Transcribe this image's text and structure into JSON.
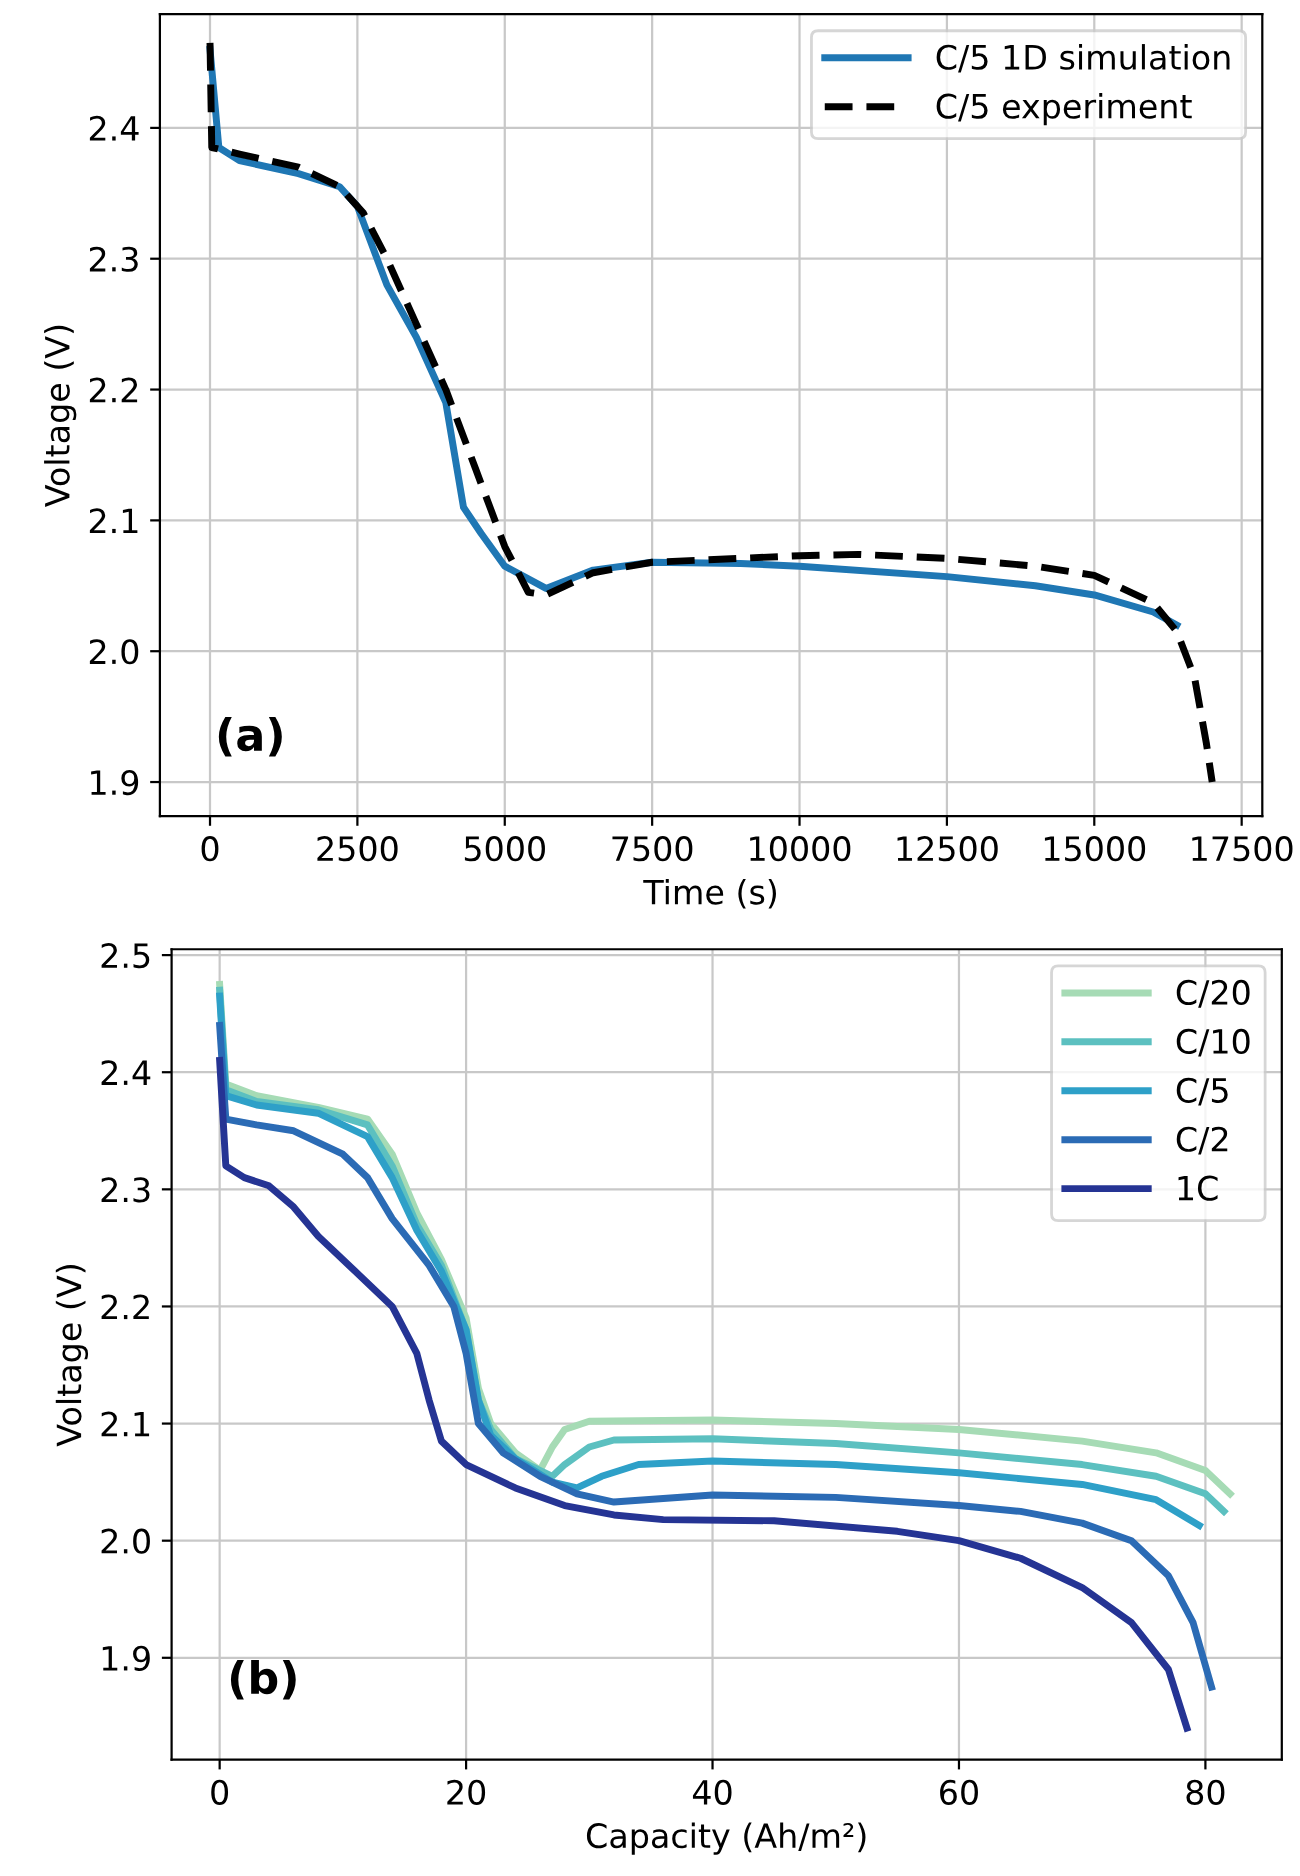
{
  "chart_data": [
    {
      "type": "line",
      "xlabel": "Time (s)",
      "ylabel": "Voltage (V)",
      "annotations": [
        "(a)"
      ],
      "xlim": [
        -850,
        17850
      ],
      "ylim": [
        1.874,
        2.487
      ],
      "xticks": [
        0,
        2500,
        5000,
        7500,
        10000,
        12500,
        15000,
        17500
      ],
      "yticks": [
        1.9,
        {
          "value": 2,
          "label": "2.0"
        },
        2.1,
        2.2,
        2.3,
        2.4
      ],
      "grid": true,
      "legend": "top right",
      "series": [
        {
          "name": "C/5 1D simulation",
          "color": "#1f77b4",
          "line_style": "solid",
          "x": [
            0,
            150,
            500,
            1500,
            2200,
            2500,
            3000,
            3500,
            4000,
            4300,
            4600,
            5000,
            5700,
            6500,
            7500,
            9000,
            10000,
            12500,
            14000,
            15000,
            16000,
            16400
          ],
          "values": [
            2.46,
            2.385,
            2.375,
            2.365,
            2.355,
            2.34,
            2.28,
            2.24,
            2.19,
            2.11,
            2.09,
            2.065,
            2.048,
            2.062,
            2.068,
            2.067,
            2.065,
            2.057,
            2.05,
            2.043,
            2.03,
            2.02
          ]
        },
        {
          "name": "C/5 experiment",
          "color": "#000000",
          "line_style": "dashed",
          "x": [
            0,
            30,
            500,
            1500,
            2200,
            2600,
            3000,
            3500,
            4000,
            4500,
            5000,
            5400,
            5700,
            6500,
            7500,
            10000,
            11000,
            12500,
            14000,
            15000,
            16000,
            16400,
            16700,
            16900,
            17000
          ],
          "values": [
            2.465,
            2.385,
            2.38,
            2.37,
            2.355,
            2.335,
            2.3,
            2.25,
            2.2,
            2.14,
            2.08,
            2.045,
            2.043,
            2.06,
            2.068,
            2.073,
            2.074,
            2.071,
            2.065,
            2.058,
            2.037,
            2.015,
            1.98,
            1.93,
            1.9
          ]
        }
      ]
    },
    {
      "type": "line",
      "xlabel": "Capacity (Ah/m²)",
      "ylabel": "Voltage (V)",
      "annotations": [
        "(b)"
      ],
      "xlim": [
        -3.9,
        86.2
      ],
      "ylim": [
        1.813,
        2.505
      ],
      "xticks": [
        0,
        20,
        40,
        60,
        80
      ],
      "yticks": [
        1.9,
        {
          "value": 2,
          "label": "2.0"
        },
        2.1,
        2.2,
        2.3,
        2.4,
        2.5
      ],
      "grid": true,
      "legend": "top right",
      "series": [
        {
          "name": "C/20",
          "color": "#a6dbb5",
          "x": [
            0,
            0.5,
            3,
            8,
            12,
            14,
            16,
            18,
            20,
            21,
            22,
            24,
            26,
            27,
            28,
            30,
            40,
            50,
            60,
            70,
            76,
            80,
            82
          ],
          "values": [
            2.475,
            2.39,
            2.38,
            2.37,
            2.36,
            2.33,
            2.28,
            2.24,
            2.19,
            2.13,
            2.1,
            2.075,
            2.06,
            2.08,
            2.095,
            2.102,
            2.103,
            2.1,
            2.095,
            2.085,
            2.075,
            2.06,
            2.04
          ]
        },
        {
          "name": "C/10",
          "color": "#5cc0c0",
          "x": [
            0,
            0.5,
            3,
            8,
            12,
            14,
            16,
            18,
            20,
            21,
            22,
            24,
            27,
            28,
            30,
            32,
            40,
            50,
            60,
            70,
            76,
            80,
            81.5
          ],
          "values": [
            2.47,
            2.385,
            2.375,
            2.368,
            2.355,
            2.32,
            2.27,
            2.235,
            2.18,
            2.12,
            2.095,
            2.07,
            2.055,
            2.065,
            2.08,
            2.086,
            2.087,
            2.083,
            2.075,
            2.065,
            2.055,
            2.04,
            2.025
          ]
        },
        {
          "name": "C/5",
          "color": "#2ea0c8",
          "x": [
            0,
            0.5,
            3,
            8,
            12,
            14,
            16,
            18,
            20,
            21,
            22,
            24,
            27,
            29,
            31,
            34,
            40,
            50,
            60,
            70,
            76,
            79.5
          ],
          "values": [
            2.465,
            2.38,
            2.372,
            2.365,
            2.345,
            2.31,
            2.265,
            2.23,
            2.18,
            2.12,
            2.09,
            2.07,
            2.05,
            2.045,
            2.055,
            2.065,
            2.068,
            2.065,
            2.058,
            2.048,
            2.035,
            2.013
          ]
        },
        {
          "name": "C/2",
          "color": "#2b6bb5",
          "x": [
            0,
            0.5,
            3,
            6,
            10,
            12,
            14,
            17,
            19,
            20,
            21,
            23,
            26,
            29,
            32,
            36,
            40,
            50,
            60,
            65,
            70,
            74,
            77,
            79,
            80.5
          ],
          "values": [
            2.44,
            2.36,
            2.355,
            2.35,
            2.33,
            2.31,
            2.275,
            2.235,
            2.2,
            2.16,
            2.1,
            2.075,
            2.055,
            2.04,
            2.033,
            2.036,
            2.039,
            2.037,
            2.03,
            2.025,
            2.015,
            2.0,
            1.97,
            1.93,
            1.875
          ]
        },
        {
          "name": "1C",
          "color": "#253494",
          "x": [
            0,
            0.5,
            2,
            4,
            6,
            8,
            11,
            14,
            16,
            17,
            18,
            20,
            24,
            28,
            32,
            36,
            45,
            55,
            60,
            65,
            70,
            74,
            77,
            78.5
          ],
          "values": [
            2.41,
            2.32,
            2.31,
            2.303,
            2.285,
            2.26,
            2.23,
            2.2,
            2.16,
            2.12,
            2.085,
            2.065,
            2.045,
            2.03,
            2.022,
            2.018,
            2.017,
            2.008,
            2.0,
            1.985,
            1.96,
            1.93,
            1.89,
            1.84
          ]
        }
      ]
    }
  ]
}
